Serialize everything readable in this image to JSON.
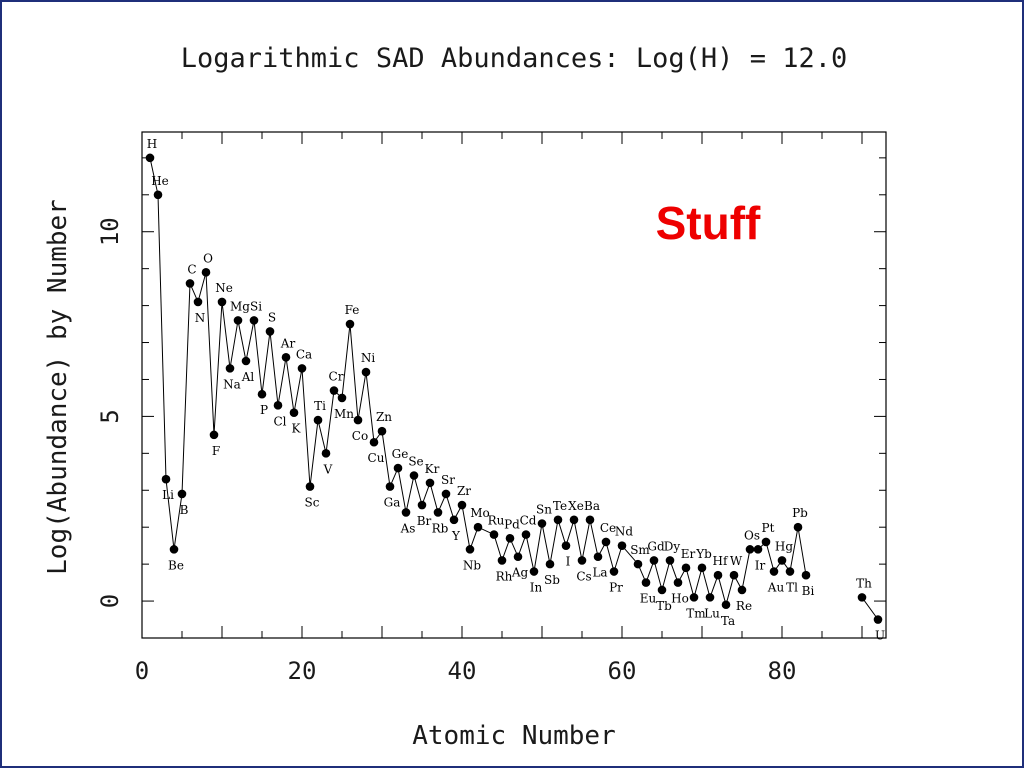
{
  "chart_data": {
    "type": "line",
    "title": "Logarithmic SAD Abundances: Log(H) = 12.0",
    "xlabel": "Atomic Number",
    "ylabel": "Log(Abundance) by Number",
    "xlim": [
      0,
      93
    ],
    "ylim": [
      -1,
      12.7
    ],
    "xticks": [
      0,
      20,
      40,
      60,
      80
    ],
    "yticks": [
      0,
      5,
      10
    ],
    "grid": false,
    "legend": false,
    "marker": "filled-circle",
    "series_color": "#000000",
    "annotation": {
      "text": "Stuff",
      "color": "#ee0000"
    },
    "points": [
      {
        "x": 1,
        "y": 12.0,
        "label": "H"
      },
      {
        "x": 2,
        "y": 11.0,
        "label": "He"
      },
      {
        "x": 3,
        "y": 3.3,
        "label": "Li"
      },
      {
        "x": 4,
        "y": 1.4,
        "label": "Be"
      },
      {
        "x": 5,
        "y": 2.9,
        "label": "B"
      },
      {
        "x": 6,
        "y": 8.6,
        "label": "C"
      },
      {
        "x": 7,
        "y": 8.1,
        "label": "N"
      },
      {
        "x": 8,
        "y": 8.9,
        "label": "O"
      },
      {
        "x": 9,
        "y": 4.5,
        "label": "F"
      },
      {
        "x": 10,
        "y": 8.1,
        "label": "Ne"
      },
      {
        "x": 11,
        "y": 6.3,
        "label": "Na"
      },
      {
        "x": 12,
        "y": 7.6,
        "label": "Mg"
      },
      {
        "x": 13,
        "y": 6.5,
        "label": "Al"
      },
      {
        "x": 14,
        "y": 7.6,
        "label": "Si"
      },
      {
        "x": 15,
        "y": 5.6,
        "label": "P"
      },
      {
        "x": 16,
        "y": 7.3,
        "label": "S"
      },
      {
        "x": 17,
        "y": 5.3,
        "label": "Cl"
      },
      {
        "x": 18,
        "y": 6.6,
        "label": "Ar"
      },
      {
        "x": 19,
        "y": 5.1,
        "label": "K"
      },
      {
        "x": 20,
        "y": 6.3,
        "label": "Ca"
      },
      {
        "x": 21,
        "y": 3.1,
        "label": "Sc"
      },
      {
        "x": 22,
        "y": 4.9,
        "label": "Ti"
      },
      {
        "x": 23,
        "y": 4.0,
        "label": "V"
      },
      {
        "x": 24,
        "y": 5.7,
        "label": "Cr"
      },
      {
        "x": 25,
        "y": 5.5,
        "label": "Mn"
      },
      {
        "x": 26,
        "y": 7.5,
        "label": "Fe"
      },
      {
        "x": 27,
        "y": 4.9,
        "label": "Co"
      },
      {
        "x": 28,
        "y": 6.2,
        "label": "Ni"
      },
      {
        "x": 29,
        "y": 4.3,
        "label": "Cu"
      },
      {
        "x": 30,
        "y": 4.6,
        "label": "Zn"
      },
      {
        "x": 31,
        "y": 3.1,
        "label": "Ga"
      },
      {
        "x": 32,
        "y": 3.6,
        "label": "Ge"
      },
      {
        "x": 33,
        "y": 2.4,
        "label": "As"
      },
      {
        "x": 34,
        "y": 3.4,
        "label": "Se"
      },
      {
        "x": 35,
        "y": 2.6,
        "label": "Br"
      },
      {
        "x": 36,
        "y": 3.2,
        "label": "Kr"
      },
      {
        "x": 37,
        "y": 2.4,
        "label": "Rb"
      },
      {
        "x": 38,
        "y": 2.9,
        "label": "Sr"
      },
      {
        "x": 39,
        "y": 2.2,
        "label": "Y"
      },
      {
        "x": 40,
        "y": 2.6,
        "label": "Zr"
      },
      {
        "x": 41,
        "y": 1.4,
        "label": "Nb"
      },
      {
        "x": 42,
        "y": 2.0,
        "label": "Mo"
      },
      {
        "x": 44,
        "y": 1.8,
        "label": "Ru"
      },
      {
        "x": 45,
        "y": 1.1,
        "label": "Rh"
      },
      {
        "x": 46,
        "y": 1.7,
        "label": "Pd"
      },
      {
        "x": 47,
        "y": 1.2,
        "label": "Ag"
      },
      {
        "x": 48,
        "y": 1.8,
        "label": "Cd"
      },
      {
        "x": 49,
        "y": 0.8,
        "label": "In"
      },
      {
        "x": 50,
        "y": 2.1,
        "label": "Sn"
      },
      {
        "x": 51,
        "y": 1.0,
        "label": "Sb"
      },
      {
        "x": 52,
        "y": 2.2,
        "label": "Te"
      },
      {
        "x": 53,
        "y": 1.5,
        "label": "I"
      },
      {
        "x": 54,
        "y": 2.2,
        "label": "Xe"
      },
      {
        "x": 55,
        "y": 1.1,
        "label": "Cs"
      },
      {
        "x": 56,
        "y": 2.2,
        "label": "Ba"
      },
      {
        "x": 57,
        "y": 1.2,
        "label": "La"
      },
      {
        "x": 58,
        "y": 1.6,
        "label": "Ce"
      },
      {
        "x": 59,
        "y": 0.8,
        "label": "Pr"
      },
      {
        "x": 60,
        "y": 1.5,
        "label": "Nd"
      },
      {
        "x": 62,
        "y": 1.0,
        "label": "Sm"
      },
      {
        "x": 63,
        "y": 0.5,
        "label": "Eu"
      },
      {
        "x": 64,
        "y": 1.1,
        "label": "Gd"
      },
      {
        "x": 65,
        "y": 0.3,
        "label": "Tb"
      },
      {
        "x": 66,
        "y": 1.1,
        "label": "Dy"
      },
      {
        "x": 67,
        "y": 0.5,
        "label": "Ho"
      },
      {
        "x": 68,
        "y": 0.9,
        "label": "Er"
      },
      {
        "x": 69,
        "y": 0.1,
        "label": "Tm"
      },
      {
        "x": 70,
        "y": 0.9,
        "label": "Yb"
      },
      {
        "x": 71,
        "y": 0.1,
        "label": "Lu"
      },
      {
        "x": 72,
        "y": 0.7,
        "label": "Hf"
      },
      {
        "x": 73,
        "y": -0.1,
        "label": "Ta"
      },
      {
        "x": 74,
        "y": 0.7,
        "label": "W"
      },
      {
        "x": 75,
        "y": 0.3,
        "label": "Re"
      },
      {
        "x": 76,
        "y": 1.4,
        "label": "Os"
      },
      {
        "x": 77,
        "y": 1.4,
        "label": "Ir"
      },
      {
        "x": 78,
        "y": 1.6,
        "label": "Pt"
      },
      {
        "x": 79,
        "y": 0.8,
        "label": "Au"
      },
      {
        "x": 80,
        "y": 1.1,
        "label": "Hg"
      },
      {
        "x": 81,
        "y": 0.8,
        "label": "Tl"
      },
      {
        "x": 82,
        "y": 2.0,
        "label": "Pb"
      },
      {
        "x": 83,
        "y": 0.7,
        "label": "Bi"
      },
      {
        "x": 90,
        "y": 0.1,
        "label": "Th"
      },
      {
        "x": 92,
        "y": -0.5,
        "label": "U"
      }
    ]
  }
}
